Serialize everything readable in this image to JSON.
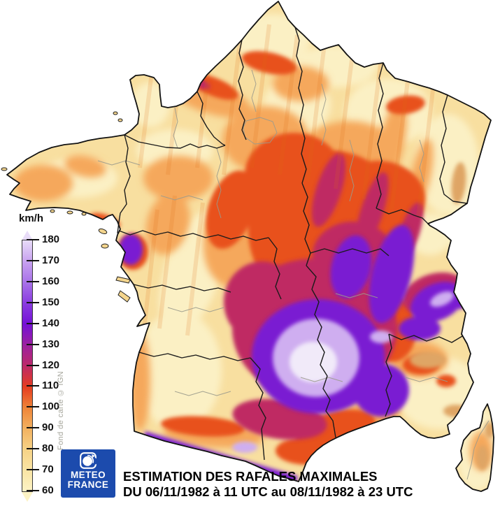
{
  "title": {
    "line1": "ESTIMATION DES RAFALES MAXIMALES",
    "line2": "DU 06/11/1982 à 11 UTC au 08/11/1982 à 23 UTC"
  },
  "legend": {
    "unit": "km/h",
    "min": 60,
    "max": 180,
    "tick_values": [
      180,
      170,
      160,
      150,
      140,
      130,
      120,
      110,
      100,
      90,
      80,
      70,
      60
    ],
    "stops": [
      {
        "value": 60,
        "color": "#fcf3c5"
      },
      {
        "value": 70,
        "color": "#f9e4a4"
      },
      {
        "value": 80,
        "color": "#f6d286"
      },
      {
        "value": 90,
        "color": "#f2b160"
      },
      {
        "value": 100,
        "color": "#ee8438"
      },
      {
        "value": 110,
        "color": "#e53c20"
      },
      {
        "value": 120,
        "color": "#bd2968"
      },
      {
        "value": 130,
        "color": "#9c20a0"
      },
      {
        "value": 140,
        "color": "#7412d6"
      },
      {
        "value": 150,
        "color": "#8a3ce0"
      },
      {
        "value": 160,
        "color": "#a872e8"
      },
      {
        "value": 170,
        "color": "#c8a2f0"
      },
      {
        "value": 180,
        "color": "#e8dcf8"
      }
    ]
  },
  "attribution": "Fond de carte © IGN",
  "logo": {
    "line1": "METEO",
    "line2": "FRANCE",
    "background": "#1c4bad"
  },
  "map": {
    "subject": "Map of France shaded by estimated maximum wind gusts (km/h)",
    "sea_color": "#ffffff",
    "strongest_zone": "South-central France (Massif Central / Cévennes), pale lavender core 170-180 km/h",
    "high_zones": [
      "Rhône valley",
      "Southern Alps",
      "Pyrenees border band",
      "Languedoc coast"
    ],
    "moderate_zones": [
      "Burgundy",
      "Centre-east France 100-120 km/h"
    ],
    "low_zones": [
      "Brittany",
      "Aquitaine",
      "Provence",
      "Corsica",
      "Alsace plain",
      "North coast 60-90 km/h"
    ]
  }
}
